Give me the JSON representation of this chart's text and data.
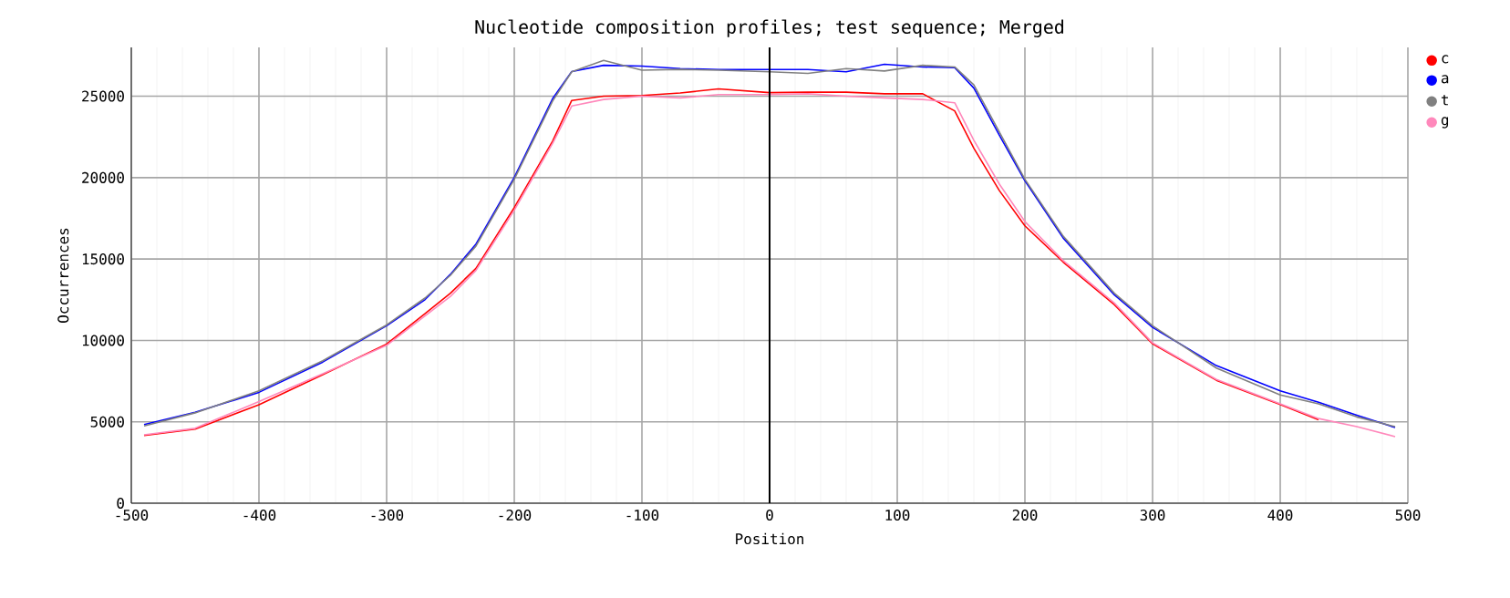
{
  "chart_data": {
    "type": "line",
    "title": "Nucleotide composition profiles; test sequence; Merged",
    "xlabel": "Position",
    "ylabel": "Occurrences",
    "x": [
      -490,
      -450,
      -400,
      -350,
      -300,
      -270,
      -250,
      -230,
      -200,
      -170,
      -155,
      -130,
      -100,
      -70,
      -40,
      0,
      30,
      60,
      90,
      120,
      145,
      160,
      180,
      200,
      230,
      270,
      300,
      350,
      400,
      430,
      460,
      490
    ],
    "series": [
      {
        "name": "c",
        "color": "#ff0000",
        "values": [
          4160,
          4550,
          6050,
          7900,
          9780,
          11640,
          12900,
          14430,
          18160,
          22240,
          24740,
          25000,
          25050,
          25200,
          25450,
          25220,
          25250,
          25250,
          25150,
          25150,
          24100,
          21800,
          19200,
          17040,
          14810,
          12200,
          9790,
          7550,
          6060,
          5130,
          null,
          null
        ]
      },
      {
        "name": "a",
        "color": "#0000ff",
        "values": [
          4830,
          5580,
          6810,
          8670,
          10900,
          12500,
          14060,
          15920,
          20010,
          24850,
          26520,
          26900,
          26850,
          26700,
          26640,
          26640,
          26640,
          26500,
          26960,
          26800,
          26750,
          25500,
          22600,
          19800,
          16290,
          12800,
          10800,
          8450,
          6900,
          6200,
          5400,
          4650
        ]
      },
      {
        "name": "t",
        "color": "#808080",
        "values": [
          4750,
          5550,
          6900,
          8750,
          10950,
          12600,
          14000,
          15800,
          19900,
          24700,
          26500,
          27200,
          26600,
          26650,
          26600,
          26500,
          26400,
          26700,
          26550,
          26900,
          26800,
          25700,
          22800,
          19900,
          16400,
          12900,
          10900,
          8300,
          6650,
          6100,
          5300,
          4700
        ]
      },
      {
        "name": "g",
        "color": "#ff88bb",
        "values": [
          4200,
          4600,
          6250,
          7950,
          9700,
          11500,
          12700,
          14300,
          18000,
          22100,
          24400,
          24800,
          25000,
          24900,
          25100,
          25100,
          25150,
          25000,
          24900,
          24800,
          24600,
          22300,
          19600,
          17300,
          14900,
          12300,
          9850,
          7600,
          6100,
          5200,
          4700,
          4090
        ]
      }
    ],
    "xlim": [
      -500,
      500
    ],
    "ylim": [
      0,
      28000
    ],
    "xticks": [
      -500,
      -400,
      -300,
      -200,
      -100,
      0,
      100,
      200,
      300,
      400,
      500
    ],
    "yticks": [
      0,
      5000,
      10000,
      15000,
      20000,
      25000
    ],
    "grid": true,
    "legend": "top right",
    "marker": "none",
    "line_style": "solid",
    "ref_lines": [
      {
        "axis": "x",
        "value": 0,
        "color": "#000000"
      }
    ]
  }
}
